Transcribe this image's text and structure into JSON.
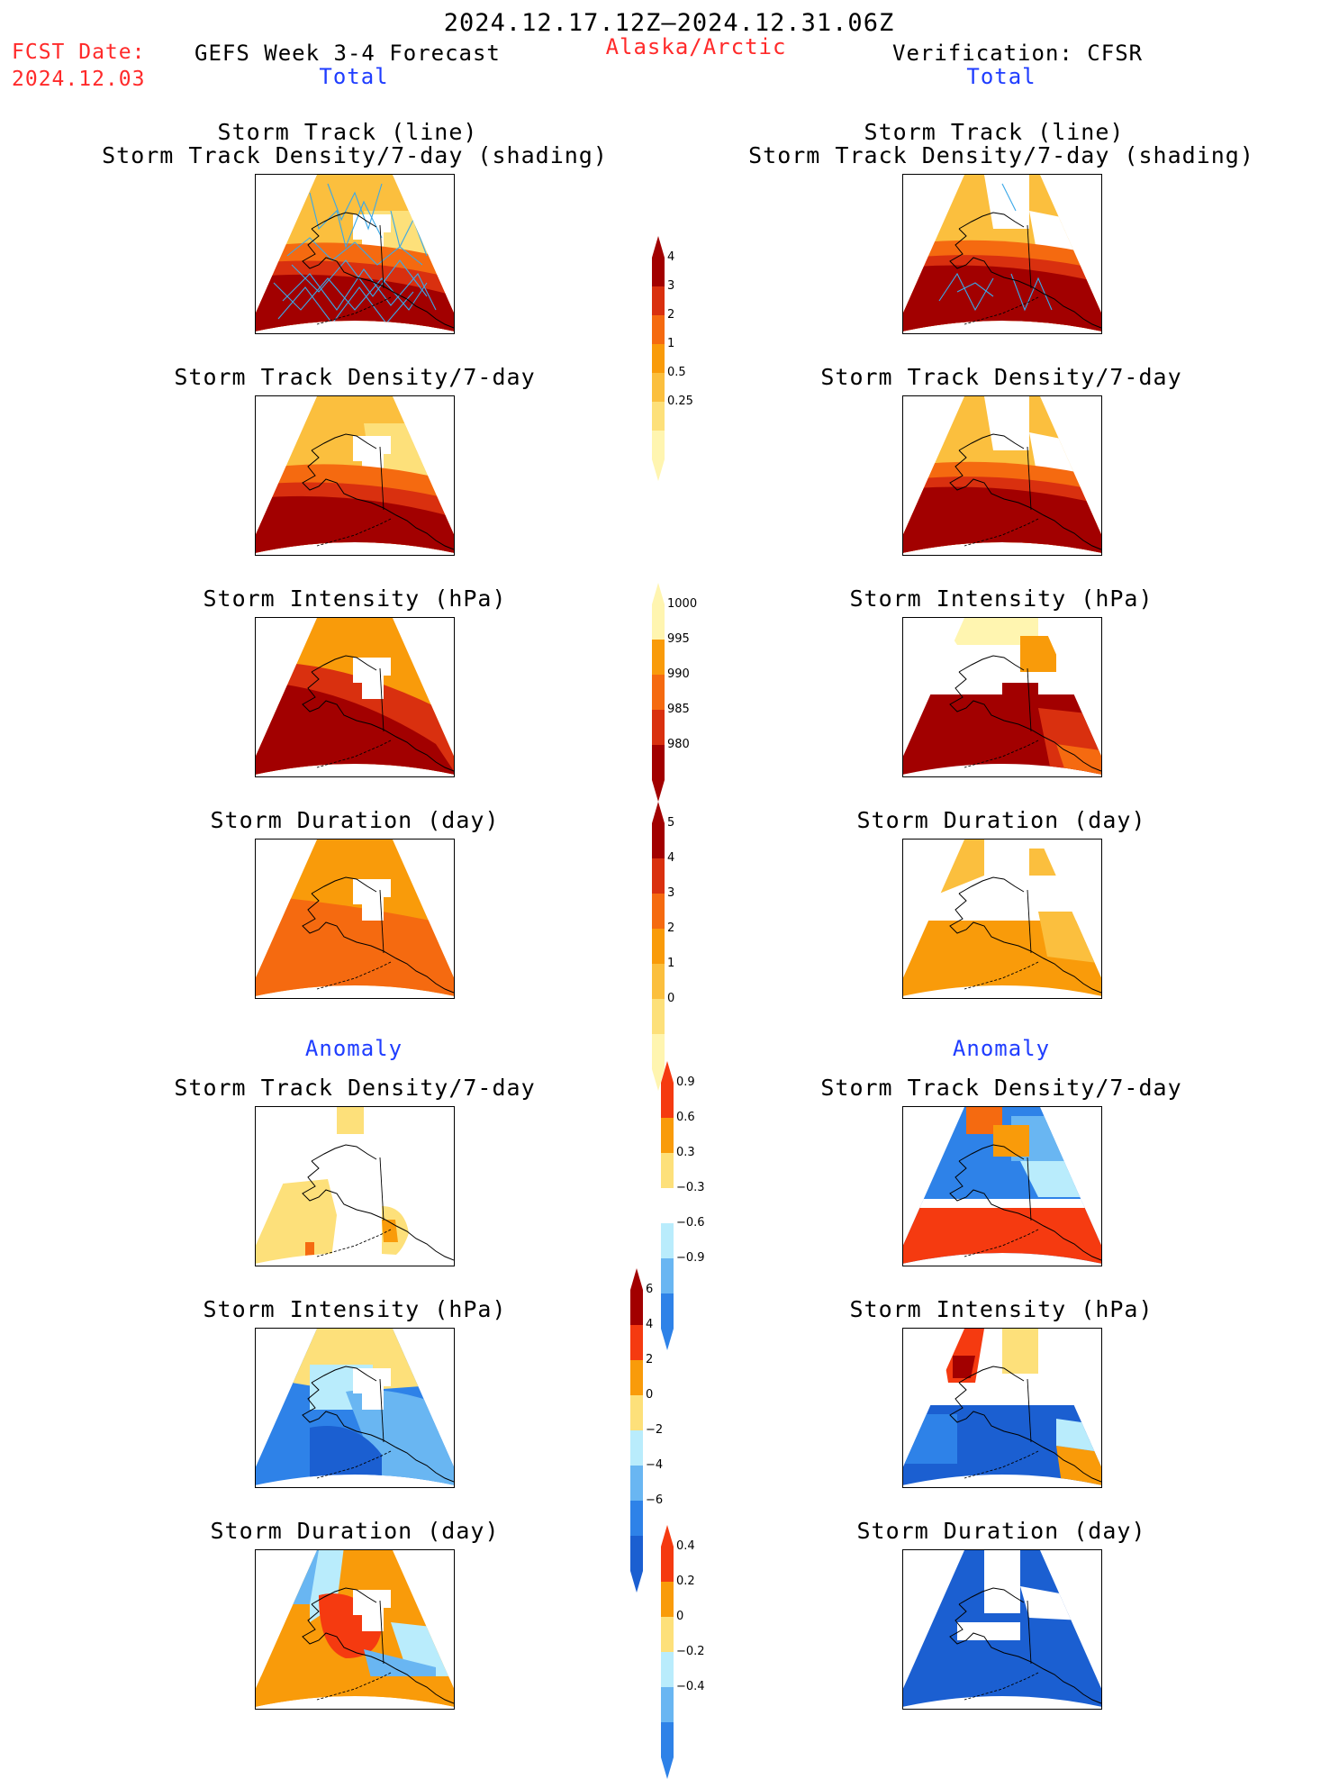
{
  "header": {
    "period": "2024.12.17.12Z–2024.12.31.06Z",
    "fcst_label": "FCST Date:",
    "fcst_date": "2024.12.03",
    "model": "GEFS Week 3-4 Forecast",
    "region": "Alaska/Arctic",
    "verification": "Verification: CFSR",
    "left_total": "Total",
    "right_total": "Total",
    "left_anomaly": "Anomaly",
    "right_anomaly": "Anomaly"
  },
  "colors": {
    "c_lightyellow": "#fff5b0",
    "c_yellow": "#fde07a",
    "c_lightorange": "#fbbf3e",
    "c_orange": "#f99b0a",
    "c_darkorange": "#f56a10",
    "c_red": "#d9300f",
    "c_darkred": "#a20000",
    "c_lightblue": "#b9ecfc",
    "c_midblue": "#69b6f2",
    "c_blue": "#2e82e8",
    "c_darkblue": "#1b5fd1",
    "track_line": "#3aa8e8"
  },
  "panels": {
    "l_track": {
      "title1": "Storm Track (line)",
      "title2": "Storm Track Density/7-day (shading)"
    },
    "r_track": {
      "title1": "Storm Track (line)",
      "title2": "Storm Track Density/7-day (shading)"
    },
    "l_density": {
      "title": "Storm Track Density/7-day"
    },
    "r_density": {
      "title": "Storm Track Density/7-day"
    },
    "l_intensity": {
      "title": "Storm Intensity (hPa)"
    },
    "r_intensity": {
      "title": "Storm Intensity (hPa)"
    },
    "l_duration": {
      "title": "Storm Duration (day)"
    },
    "r_duration": {
      "title": "Storm Duration (day)"
    },
    "l_anom_density": {
      "title": "Storm Track Density/7-day"
    },
    "r_anom_density": {
      "title": "Storm Track Density/7-day"
    },
    "l_anom_intensity": {
      "title": "Storm Intensity (hPa)"
    },
    "r_anom_intensity": {
      "title": "Storm Intensity (hPa)"
    },
    "l_anom_duration": {
      "title": "Storm Duration (day)"
    },
    "r_anom_duration": {
      "title": "Storm Duration (day)"
    }
  },
  "colorbars": {
    "density": {
      "ticks": [
        "4",
        "3",
        "2",
        "1",
        "0.5",
        "0.25"
      ],
      "colors": [
        "#a20000",
        "#d9300f",
        "#f56a10",
        "#f99b0a",
        "#fbbf3e",
        "#fde07a",
        "#fff5b0"
      ]
    },
    "intensity": {
      "ticks": [
        "1000",
        "995",
        "990",
        "985",
        "980"
      ],
      "colors": [
        "#fff5b0",
        "#f99b0a",
        "#f56a10",
        "#d9300f",
        "#a20000"
      ]
    },
    "duration": {
      "ticks": [
        "5",
        "4",
        "3",
        "2",
        "1",
        "0"
      ],
      "colors": [
        "#a20000",
        "#d9300f",
        "#f56a10",
        "#f99b0a",
        "#fbbf3e",
        "#fde07a",
        "#fff5b0"
      ]
    },
    "anom_density": {
      "ticks": [
        "0.9",
        "0.6",
        "0.3",
        "−0.3",
        "−0.6",
        "−0.9"
      ],
      "colors": [
        "#f53a10",
        "#f99b0a",
        "#fde07a",
        "#ffffff",
        "#b9ecfc",
        "#69b6f2",
        "#2e82e8"
      ]
    },
    "anom_intensity": {
      "ticks": [
        "6",
        "4",
        "2",
        "0",
        "−2",
        "−4",
        "−6"
      ],
      "colors": [
        "#a20000",
        "#f53a10",
        "#f99b0a",
        "#fde07a",
        "#b9ecfc",
        "#69b6f2",
        "#2e82e8",
        "#1b5fd1"
      ]
    },
    "anom_duration": {
      "ticks": [
        "0.4",
        "0.2",
        "0",
        "−0.2",
        "−0.4"
      ],
      "colors": [
        "#f53a10",
        "#f99b0a",
        "#fde07a",
        "#b9ecfc",
        "#69b6f2",
        "#2e82e8"
      ]
    }
  }
}
